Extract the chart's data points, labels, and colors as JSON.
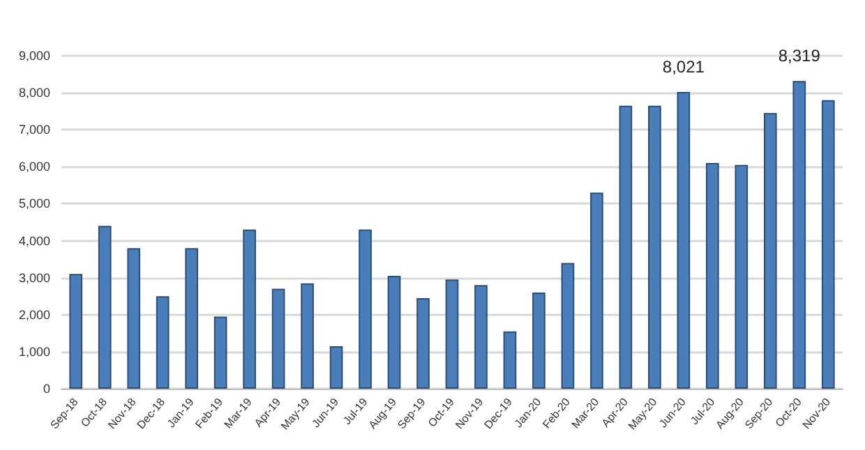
{
  "chart_data": {
    "type": "bar",
    "categories": [
      "Sep-18",
      "Oct-18",
      "Nov-18",
      "Dec-18",
      "Jan-19",
      "Feb-19",
      "Mar-19",
      "Apr-19",
      "May-19",
      "Jun-19",
      "Jul-19",
      "Aug-19",
      "Sep-19",
      "Oct-19",
      "Nov-19",
      "Dec-19",
      "Jan-20",
      "Feb-20",
      "Mar-20",
      "Apr-20",
      "May-20",
      "Jun-20",
      "Jul-20",
      "Aug-20",
      "Sep-20",
      "Oct-20",
      "Nov-20"
    ],
    "values": [
      3100,
      4400,
      3800,
      2500,
      3800,
      1950,
      4300,
      2700,
      2850,
      1150,
      4300,
      3050,
      2450,
      2950,
      2800,
      1550,
      2600,
      3400,
      5300,
      7650,
      7650,
      8021,
      6100,
      6050,
      7450,
      8319,
      7800
    ],
    "value_labels": [
      null,
      null,
      null,
      null,
      null,
      null,
      null,
      null,
      null,
      null,
      null,
      null,
      null,
      null,
      null,
      null,
      null,
      null,
      null,
      null,
      null,
      "8,021",
      null,
      null,
      null,
      "8,319",
      null
    ],
    "color": "#4a7ebb",
    "ylim": [
      0,
      9000
    ],
    "yticks": [
      {
        "value": 0,
        "label": "0"
      },
      {
        "value": 1000,
        "label": "1,000"
      },
      {
        "value": 2000,
        "label": "2,000"
      },
      {
        "value": 3000,
        "label": "3,000"
      },
      {
        "value": 4000,
        "label": "4,000"
      },
      {
        "value": 5000,
        "label": "5,000"
      },
      {
        "value": 6000,
        "label": "6,000"
      },
      {
        "value": 7000,
        "label": "7,000"
      },
      {
        "value": 8000,
        "label": "8,000"
      },
      {
        "value": 9000,
        "label": "9,000"
      }
    ],
    "grid": "y"
  }
}
